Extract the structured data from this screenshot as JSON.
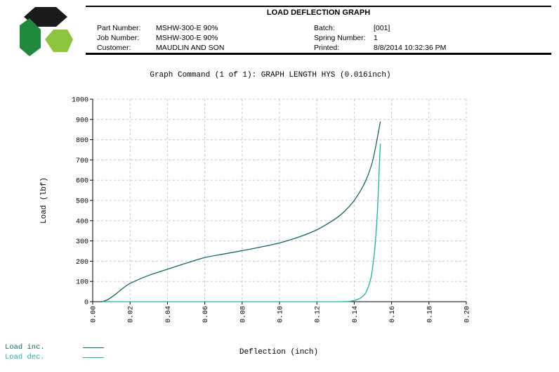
{
  "header": {
    "title": "LOAD DEFLECTION GRAPH",
    "part_number_label": "Part Number:",
    "part_number": "MSHW-300-E 90%",
    "job_number_label": "Job Number:",
    "job_number": "MSHW-300-E 90%",
    "customer_label": "Customer:",
    "customer": "MAUDLIN AND SON",
    "batch_label": "Batch:",
    "batch": "[001]",
    "spring_number_label": "Spring Number:",
    "spring_number": "1",
    "printed_label": "Printed:",
    "printed": "8/8/2014 10:32:36 PM"
  },
  "colors": {
    "logo_dark": "#1a1a1a",
    "logo_green_dark": "#1f8a3a",
    "logo_green_light": "#8cc63f",
    "load_inc": "#0f6a66",
    "load_dec": "#17b3a6",
    "grid": "#c8c8c8"
  },
  "chart_data": {
    "type": "line",
    "title": "Graph Command (1 of 1): GRAPH LENGTH HYS (0.016inch)",
    "xlabel": "Deflection (inch)",
    "ylabel": "Load (lbf)",
    "xlim": [
      0,
      0.2
    ],
    "ylim": [
      0,
      1000
    ],
    "x_ticks": [
      "0.00",
      "0.02",
      "0.04",
      "0.06",
      "0.08",
      "0.10",
      "0.12",
      "0.14",
      "0.16",
      "0.18",
      "0.20"
    ],
    "y_ticks": [
      "0",
      "100",
      "200",
      "300",
      "400",
      "500",
      "600",
      "700",
      "800",
      "900",
      "1000"
    ],
    "grid": true,
    "legend_position": "bottom-left",
    "series": [
      {
        "name": "Load inc.",
        "x": [
          0.005,
          0.008,
          0.012,
          0.016,
          0.02,
          0.03,
          0.04,
          0.05,
          0.06,
          0.07,
          0.08,
          0.09,
          0.1,
          0.11,
          0.12,
          0.13,
          0.135,
          0.14,
          0.145,
          0.148,
          0.15,
          0.152,
          0.154
        ],
        "y": [
          0,
          10,
          35,
          65,
          90,
          130,
          160,
          190,
          218,
          235,
          252,
          270,
          290,
          318,
          355,
          410,
          448,
          500,
          575,
          640,
          700,
          790,
          890
        ]
      },
      {
        "name": "Load dec.",
        "x": [
          0.134,
          0.138,
          0.142,
          0.145,
          0.147,
          0.149,
          0.15,
          0.151,
          0.152,
          0.1525,
          0.153,
          0.1535,
          0.154
        ],
        "y": [
          0,
          2,
          12,
          30,
          60,
          120,
          180,
          260,
          380,
          460,
          560,
          680,
          780
        ]
      }
    ]
  }
}
